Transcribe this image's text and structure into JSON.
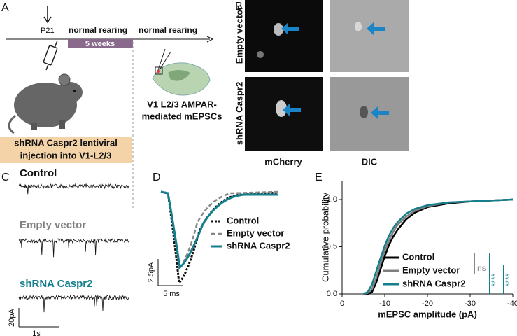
{
  "panel_a": {
    "label": "A",
    "age": "P21",
    "phase1": "normal rearing",
    "duration": "5 weeks",
    "phase2": "normal rearing",
    "injection": [
      "shRNA Caspr2 lentiviral",
      "injection into V1-L2/3"
    ],
    "recording": [
      "V1 L2/3 AMPAR-",
      "mediated mEPSCs"
    ]
  },
  "panel_b": {
    "label": "B",
    "rows": [
      "Empty vector",
      "shRNA Caspr2"
    ],
    "columns": [
      "mCherry",
      "DIC"
    ]
  },
  "panel_c": {
    "label": "C",
    "traces": [
      "Control",
      "Empty vector",
      "shRNA Caspr2"
    ],
    "scale_y": "20pA",
    "scale_x": "1s"
  },
  "panel_d": {
    "label": "D",
    "legend": [
      "Control",
      "Empty vector",
      "shRNA Caspr2"
    ],
    "scale_y": "2.5pA",
    "scale_x": "5 ms"
  },
  "panel_e": {
    "label": "E",
    "significance": [
      "ns",
      "****",
      "****"
    ]
  },
  "chart_data": {
    "type": "line",
    "xlabel": "mEPSC amplitude (pA)",
    "ylabel": "Cumulative probability",
    "x": [
      -5,
      -6,
      -7,
      -8,
      -9,
      -10,
      -11,
      -12,
      -13,
      -15,
      -17,
      -20,
      -25,
      -30,
      -35,
      -40
    ],
    "series": [
      {
        "name": "Control",
        "color": "#000000",
        "values": [
          0,
          0,
          0.02,
          0.12,
          0.26,
          0.4,
          0.52,
          0.61,
          0.68,
          0.79,
          0.86,
          0.92,
          0.96,
          0.98,
          0.99,
          1.0
        ]
      },
      {
        "name": "Empty vector",
        "color": "#808080",
        "values": [
          0,
          0.01,
          0.05,
          0.17,
          0.32,
          0.46,
          0.57,
          0.66,
          0.73,
          0.82,
          0.88,
          0.93,
          0.97,
          0.98,
          0.99,
          1.0
        ]
      },
      {
        "name": "shRNA Caspr2",
        "color": "#137e8c",
        "values": [
          0,
          0.02,
          0.1,
          0.24,
          0.38,
          0.51,
          0.62,
          0.7,
          0.76,
          0.85,
          0.9,
          0.94,
          0.97,
          0.98,
          0.99,
          1.0
        ]
      }
    ],
    "xlim": [
      0,
      -40
    ],
    "ylim": [
      0,
      1.2
    ],
    "xticks": [
      0,
      -10,
      -20,
      -30,
      -40
    ],
    "yticks": [
      {
        "value": 0,
        "label": "0.0"
      },
      0.5,
      {
        "value": 1,
        "label": "1.0"
      }
    ]
  }
}
